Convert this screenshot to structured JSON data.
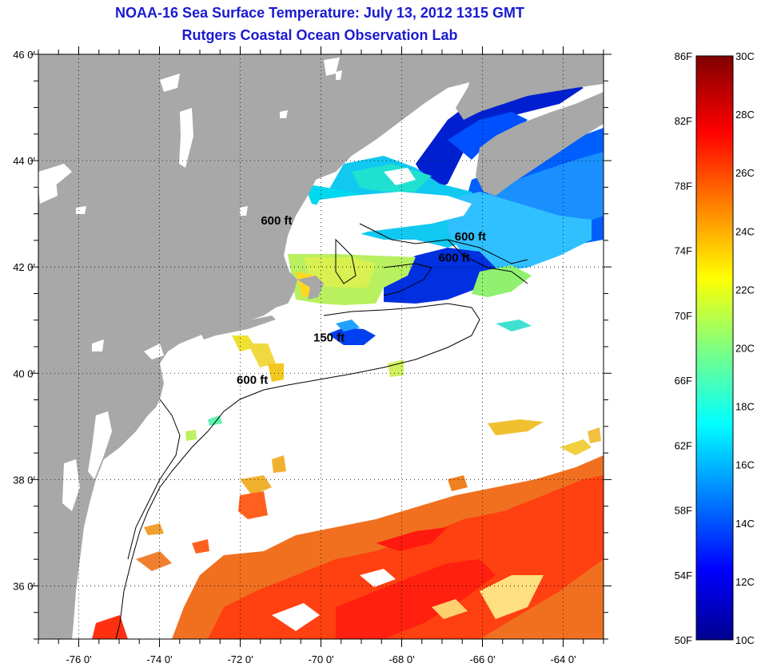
{
  "title": {
    "line1": "NOAA-16 Sea Surface Temperature:  July 13, 2012 1315 GMT",
    "line2": "Rutgers Coastal Ocean Observation Lab"
  },
  "map": {
    "lon_range": [
      -77,
      -63
    ],
    "lat_range": [
      35,
      46
    ],
    "lon_ticks": [
      {
        "value": -76,
        "label": "-76 0'"
      },
      {
        "value": -74,
        "label": "-74 0'"
      },
      {
        "value": -72,
        "label": "-72 0'"
      },
      {
        "value": -70,
        "label": "-70 0'"
      },
      {
        "value": -68,
        "label": "-68 0'"
      },
      {
        "value": -66,
        "label": "-66 0'"
      },
      {
        "value": -64,
        "label": "-64 0'"
      }
    ],
    "lat_ticks": [
      {
        "value": 46,
        "label": "46 0'"
      },
      {
        "value": 44,
        "label": "44 0'"
      },
      {
        "value": 42,
        "label": "42 0'"
      },
      {
        "value": 40,
        "label": "40 0'"
      },
      {
        "value": 38,
        "label": "38 0'"
      },
      {
        "value": 36,
        "label": "36 0'"
      }
    ],
    "grid": "dotted",
    "land_color": "#a8a8a8",
    "contour_labels": [
      {
        "text": "600 ft",
        "lon": -71.1,
        "lat": 42.8
      },
      {
        "text": "600 ft",
        "lon": -66.3,
        "lat": 42.5
      },
      {
        "text": "600 ft",
        "lon": -66.7,
        "lat": 42.1
      },
      {
        "text": "150 ft",
        "lon": -69.8,
        "lat": 40.6
      },
      {
        "text": "600 ft",
        "lon": -71.7,
        "lat": 39.8
      }
    ]
  },
  "colorbar": {
    "range_F": [
      50,
      86
    ],
    "range_C": [
      10,
      30
    ],
    "fahrenheit_labels": [
      "86F",
      "82F",
      "78F",
      "74F",
      "70F",
      "66F",
      "62F",
      "58F",
      "54F",
      "50F"
    ],
    "celsius_labels": [
      "30C",
      "28C",
      "26C",
      "24C",
      "22C",
      "20C",
      "18C",
      "16C",
      "14C",
      "12C",
      "10C"
    ]
  }
}
